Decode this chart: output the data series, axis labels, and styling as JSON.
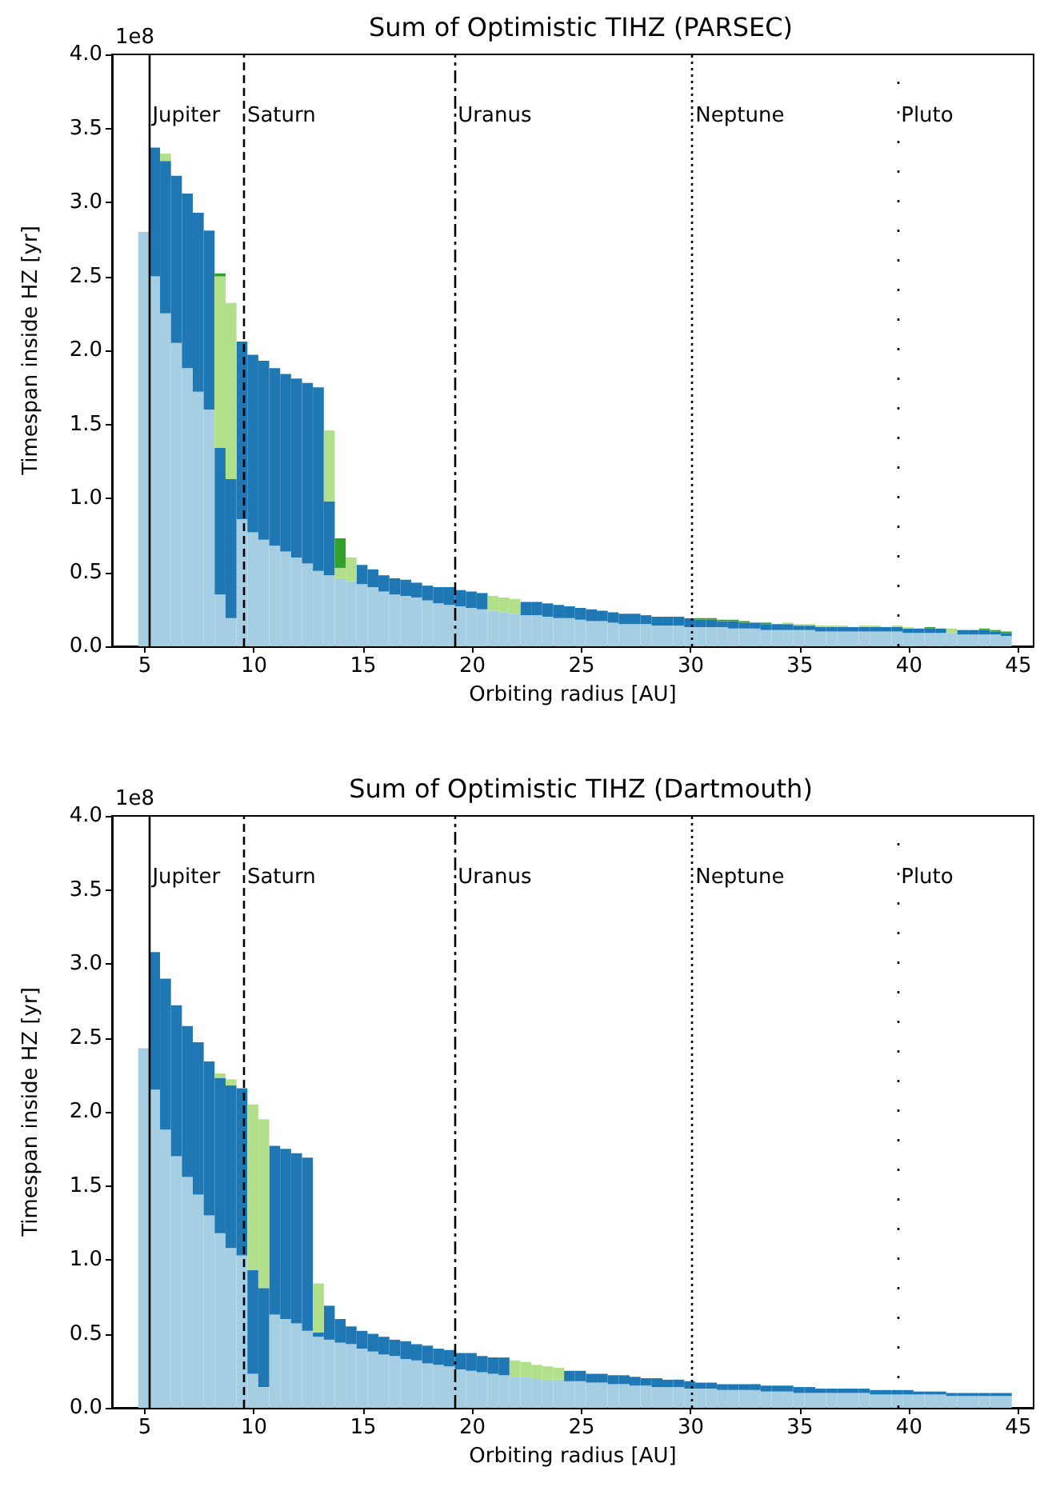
{
  "chart_data": [
    {
      "type": "bar",
      "stacked": true,
      "title": "Sum of Optimistic TIHZ (PARSEC)",
      "xlabel": "Orbiting radius [AU]",
      "ylabel": "Timespan inside HZ [yr]",
      "annotations": [
        "1e8"
      ],
      "x": [
        4.95,
        5.45,
        5.95,
        6.45,
        6.95,
        7.45,
        7.95,
        8.45,
        8.95,
        9.45,
        9.95,
        10.45,
        10.95,
        11.45,
        11.95,
        12.45,
        12.95,
        13.45,
        13.95,
        14.45,
        14.95,
        15.45,
        15.95,
        16.45,
        16.95,
        17.45,
        17.95,
        18.45,
        18.95,
        19.45,
        19.95,
        20.45,
        20.95,
        21.45,
        21.95,
        22.45,
        22.95,
        23.45,
        23.95,
        24.45,
        24.95,
        25.45,
        25.95,
        26.45,
        26.95,
        27.45,
        27.95,
        28.45,
        28.95,
        29.45,
        29.95,
        30.45,
        30.95,
        31.45,
        31.95,
        32.45,
        32.95,
        33.45,
        33.95,
        34.45,
        34.95,
        35.45,
        35.95,
        36.45,
        36.95,
        37.45,
        37.95,
        38.45,
        38.95,
        39.45,
        39.95,
        40.45,
        40.95,
        41.45,
        41.95,
        42.45,
        42.95,
        43.45,
        43.95,
        44.45
      ],
      "series": [
        {
          "color": "#a6cee3",
          "values": [
            2.8,
            2.5,
            2.25,
            2.05,
            1.88,
            1.72,
            1.6,
            0.35,
            0.19,
            0.86,
            0.77,
            0.72,
            0.68,
            0.64,
            0.6,
            0.56,
            0.51,
            0.48,
            0.46,
            0.44,
            0.42,
            0.4,
            0.37,
            0.35,
            0.34,
            0.33,
            0.31,
            0.29,
            0.28,
            0.27,
            0.26,
            0.25,
            0.24,
            0.23,
            0.22,
            0.21,
            0.21,
            0.2,
            0.19,
            0.19,
            0.18,
            0.17,
            0.17,
            0.16,
            0.15,
            0.15,
            0.15,
            0.14,
            0.14,
            0.14,
            0.13,
            0.13,
            0.13,
            0.13,
            0.12,
            0.12,
            0.12,
            0.11,
            0.11,
            0.11,
            0.11,
            0.11,
            0.1,
            0.1,
            0.1,
            0.1,
            0.1,
            0.1,
            0.1,
            0.1,
            0.09,
            0.09,
            0.09,
            0.09,
            0.09,
            0.08,
            0.08,
            0.08,
            0.08,
            0.07
          ]
        },
        {
          "color": "#1f78b4",
          "values": [
            null,
            0.87,
            1.03,
            1.13,
            1.18,
            1.21,
            1.21,
            0.99,
            0.94,
            1.2,
            1.2,
            1.21,
            1.2,
            1.2,
            1.21,
            1.22,
            1.24,
            0.5,
            null,
            null,
            0.13,
            0.12,
            0.11,
            0.11,
            0.11,
            0.1,
            0.1,
            0.11,
            0.12,
            0.11,
            0.11,
            0.11,
            null,
            null,
            null,
            0.09,
            0.09,
            0.09,
            0.09,
            0.08,
            0.08,
            0.08,
            0.07,
            0.07,
            0.07,
            0.07,
            0.06,
            0.06,
            0.06,
            0.06,
            0.06,
            0.05,
            0.05,
            0.04,
            0.05,
            0.04,
            0.04,
            0.04,
            0.04,
            0.04,
            0.03,
            0.03,
            0.03,
            0.03,
            0.03,
            0.03,
            0.03,
            0.03,
            0.03,
            0.03,
            0.03,
            0.03,
            0.03,
            0.03,
            null,
            0.03,
            0.03,
            0.03,
            0.02,
            0.02
          ]
        },
        {
          "color": "#b2df8a",
          "values": [
            null,
            null,
            0.05,
            null,
            null,
            null,
            null,
            1.16,
            1.19,
            null,
            null,
            null,
            null,
            null,
            null,
            null,
            null,
            0.48,
            0.07,
            0.16,
            null,
            null,
            null,
            null,
            null,
            null,
            null,
            null,
            null,
            null,
            null,
            null,
            0.1,
            0.1,
            0.1,
            null,
            null,
            null,
            null,
            null,
            null,
            null,
            null,
            null,
            null,
            null,
            null,
            null,
            null,
            null,
            null,
            null,
            null,
            null,
            null,
            null,
            null,
            null,
            null,
            0.01,
            0.01,
            0.01,
            0.01,
            0.01,
            0.01,
            null,
            0.01,
            0.01,
            null,
            0.01,
            0.01,
            null,
            null,
            null,
            0.03,
            null,
            null,
            null,
            null,
            null
          ]
        },
        {
          "color": "#33a02c",
          "values": [
            null,
            null,
            null,
            null,
            null,
            null,
            null,
            0.02,
            null,
            null,
            null,
            null,
            null,
            null,
            null,
            null,
            null,
            null,
            0.2,
            null,
            null,
            null,
            null,
            null,
            null,
            null,
            null,
            null,
            null,
            null,
            null,
            null,
            null,
            null,
            null,
            null,
            null,
            null,
            null,
            null,
            null,
            null,
            null,
            null,
            null,
            null,
            null,
            null,
            null,
            null,
            null,
            0.01,
            0.01,
            0.01,
            0.01,
            0.01,
            null,
            0.01,
            null,
            null,
            null,
            null,
            null,
            null,
            null,
            null,
            null,
            null,
            null,
            null,
            null,
            null,
            0.01,
            null,
            null,
            null,
            null,
            0.01,
            0.01,
            0.01
          ]
        }
      ],
      "xlim": [
        3.5,
        45.7
      ],
      "xticks": [
        5,
        10,
        15,
        20,
        25,
        30,
        35,
        40,
        45
      ],
      "ylim": [
        0,
        4
      ],
      "yticks": [
        {
          "value": 0,
          "label": "0.0"
        },
        {
          "value": 0.5,
          "label": "0.5"
        },
        {
          "value": 1,
          "label": "1.0"
        },
        {
          "value": 1.5,
          "label": "1.5"
        },
        {
          "value": 2,
          "label": "2.0"
        },
        {
          "value": 2.5,
          "label": "2.5"
        },
        {
          "value": 3,
          "label": "3.0"
        },
        {
          "value": 3.5,
          "label": "3.5"
        },
        {
          "value": 4,
          "label": "4.0"
        }
      ],
      "ref_lines": [
        {
          "axis": "x",
          "value": 5.2,
          "label": "Jupiter",
          "color": "#000000",
          "line_style": "solid"
        },
        {
          "axis": "x",
          "value": 9.54,
          "label": "Saturn",
          "color": "#000000",
          "line_style": "dashed"
        },
        {
          "axis": "x",
          "value": 19.19,
          "label": "Uranus",
          "color": "#000000",
          "line_style": "dashdot"
        },
        {
          "axis": "x",
          "value": 30.07,
          "label": "Neptune",
          "color": "#000000",
          "line_style": "dotted"
        },
        {
          "axis": "x",
          "value": 39.48,
          "label": "Pluto",
          "color": "#000000",
          "line_style": "loosely_dotted"
        }
      ]
    },
    {
      "type": "bar",
      "stacked": true,
      "title": "Sum of Optimistic TIHZ (Dartmouth)",
      "xlabel": "Orbiting radius [AU]",
      "ylabel": "Timespan inside HZ [yr]",
      "annotations": [
        "1e8"
      ],
      "x": [
        4.95,
        5.45,
        5.95,
        6.45,
        6.95,
        7.45,
        7.95,
        8.45,
        8.95,
        9.45,
        9.95,
        10.45,
        10.95,
        11.45,
        11.95,
        12.45,
        12.95,
        13.45,
        13.95,
        14.45,
        14.95,
        15.45,
        15.95,
        16.45,
        16.95,
        17.45,
        17.95,
        18.45,
        18.95,
        19.45,
        19.95,
        20.45,
        20.95,
        21.45,
        21.95,
        22.45,
        22.95,
        23.45,
        23.95,
        24.45,
        24.95,
        25.45,
        25.95,
        26.45,
        26.95,
        27.45,
        27.95,
        28.45,
        28.95,
        29.45,
        29.95,
        30.45,
        30.95,
        31.45,
        31.95,
        32.45,
        32.95,
        33.45,
        33.95,
        34.45,
        34.95,
        35.45,
        35.95,
        36.45,
        36.95,
        37.45,
        37.95,
        38.45,
        38.95,
        39.45,
        39.95,
        40.45,
        40.95,
        41.45,
        41.95,
        42.45,
        42.95,
        43.45,
        43.95,
        44.45
      ],
      "series": [
        {
          "color": "#a6cee3",
          "values": [
            2.43,
            2.15,
            1.88,
            1.7,
            1.56,
            1.44,
            1.3,
            1.18,
            1.08,
            1.03,
            0.23,
            0.14,
            0.63,
            0.6,
            0.57,
            0.52,
            0.48,
            0.46,
            0.44,
            0.43,
            0.4,
            0.38,
            0.36,
            0.35,
            0.33,
            0.32,
            0.3,
            0.29,
            0.28,
            0.26,
            0.25,
            0.24,
            0.23,
            0.22,
            0.21,
            0.21,
            0.2,
            0.19,
            0.19,
            0.18,
            0.18,
            0.17,
            0.17,
            0.16,
            0.16,
            0.15,
            0.15,
            0.14,
            0.14,
            0.14,
            0.13,
            0.13,
            0.13,
            0.12,
            0.12,
            0.12,
            0.12,
            0.11,
            0.11,
            0.11,
            0.1,
            0.1,
            0.1,
            0.1,
            0.1,
            0.1,
            0.1,
            0.09,
            0.09,
            0.09,
            0.09,
            0.09,
            0.09,
            0.09,
            0.08,
            0.08,
            0.08,
            0.08,
            0.08,
            0.08
          ]
        },
        {
          "color": "#1f78b4",
          "values": [
            null,
            0.93,
            1.02,
            1.02,
            1.02,
            1.03,
            1.04,
            1.05,
            1.1,
            1.13,
            0.7,
            0.67,
            1.14,
            1.15,
            1.15,
            1.17,
            0.03,
            0.23,
            0.16,
            0.12,
            0.12,
            0.12,
            0.12,
            0.11,
            0.12,
            0.11,
            0.12,
            0.11,
            0.11,
            0.11,
            0.12,
            0.11,
            0.11,
            0.12,
            null,
            null,
            null,
            null,
            null,
            0.07,
            0.07,
            0.06,
            0.06,
            0.06,
            0.06,
            0.06,
            0.05,
            0.06,
            0.05,
            0.05,
            0.05,
            0.04,
            0.04,
            0.04,
            0.04,
            0.04,
            0.04,
            0.04,
            0.04,
            0.04,
            0.04,
            0.04,
            0.03,
            0.03,
            0.03,
            0.03,
            0.03,
            0.03,
            0.03,
            0.03,
            0.03,
            0.02,
            0.02,
            0.02,
            0.02,
            0.02,
            0.02,
            0.02,
            0.02,
            0.02
          ]
        },
        {
          "color": "#b2df8a",
          "values": [
            null,
            null,
            null,
            null,
            null,
            null,
            null,
            0.03,
            0.04,
            null,
            1.12,
            1.14,
            null,
            null,
            null,
            null,
            0.33,
            null,
            null,
            null,
            null,
            null,
            null,
            null,
            null,
            null,
            null,
            null,
            null,
            null,
            null,
            null,
            null,
            null,
            0.11,
            0.1,
            0.09,
            0.09,
            0.08,
            null,
            null,
            null,
            null,
            null,
            null,
            null,
            null,
            null,
            null,
            null,
            null,
            null,
            null,
            null,
            null,
            null,
            null,
            null,
            null,
            null,
            null,
            null,
            null,
            null,
            null,
            null,
            null,
            null,
            null,
            null,
            null,
            null,
            null,
            null,
            null,
            null,
            null,
            null,
            null,
            null
          ]
        }
      ],
      "xlim": [
        3.5,
        45.7
      ],
      "xticks": [
        5,
        10,
        15,
        20,
        25,
        30,
        35,
        40,
        45
      ],
      "ylim": [
        0,
        4
      ],
      "yticks": [
        {
          "value": 0,
          "label": "0.0"
        },
        {
          "value": 0.5,
          "label": "0.5"
        },
        {
          "value": 1,
          "label": "1.0"
        },
        {
          "value": 1.5,
          "label": "1.5"
        },
        {
          "value": 2,
          "label": "2.0"
        },
        {
          "value": 2.5,
          "label": "2.5"
        },
        {
          "value": 3,
          "label": "3.0"
        },
        {
          "value": 3.5,
          "label": "3.5"
        },
        {
          "value": 4,
          "label": "4.0"
        }
      ],
      "ref_lines": [
        {
          "axis": "x",
          "value": 5.2,
          "label": "Jupiter",
          "color": "#000000",
          "line_style": "solid"
        },
        {
          "axis": "x",
          "value": 9.54,
          "label": "Saturn",
          "color": "#000000",
          "line_style": "dashed"
        },
        {
          "axis": "x",
          "value": 19.19,
          "label": "Uranus",
          "color": "#000000",
          "line_style": "dashdot"
        },
        {
          "axis": "x",
          "value": 30.07,
          "label": "Neptune",
          "color": "#000000",
          "line_style": "dotted"
        },
        {
          "axis": "x",
          "value": 39.48,
          "label": "Pluto",
          "color": "#000000",
          "line_style": "loosely_dotted"
        }
      ]
    }
  ]
}
